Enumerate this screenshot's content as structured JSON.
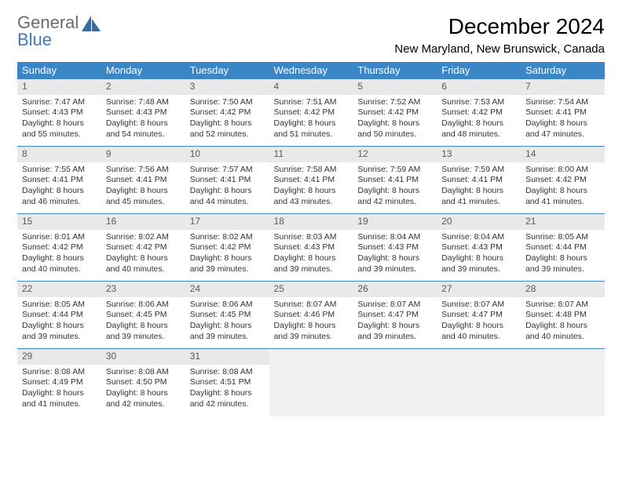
{
  "logo": {
    "word1": "General",
    "word2": "Blue"
  },
  "title": "December 2024",
  "location": "New Maryland, New Brunswick, Canada",
  "header_bg": "#3b86c6",
  "header_fg": "#ffffff",
  "daynum_bg": "#e9e9e9",
  "daynum_fg": "#5a5a5a",
  "border_color": "#3b86c6",
  "empty_bg": "#f0f0f0",
  "body_text_color": "#333333",
  "title_fontsize": 28,
  "location_fontsize": 15,
  "header_fontsize": 13,
  "cell_fontsize": 10.5,
  "weekdays": [
    "Sunday",
    "Monday",
    "Tuesday",
    "Wednesday",
    "Thursday",
    "Friday",
    "Saturday"
  ],
  "weeks": [
    [
      {
        "n": "1",
        "sr": "7:47 AM",
        "ss": "4:43 PM",
        "dh": "8",
        "dm": "55"
      },
      {
        "n": "2",
        "sr": "7:48 AM",
        "ss": "4:43 PM",
        "dh": "8",
        "dm": "54"
      },
      {
        "n": "3",
        "sr": "7:50 AM",
        "ss": "4:42 PM",
        "dh": "8",
        "dm": "52"
      },
      {
        "n": "4",
        "sr": "7:51 AM",
        "ss": "4:42 PM",
        "dh": "8",
        "dm": "51"
      },
      {
        "n": "5",
        "sr": "7:52 AM",
        "ss": "4:42 PM",
        "dh": "8",
        "dm": "50"
      },
      {
        "n": "6",
        "sr": "7:53 AM",
        "ss": "4:42 PM",
        "dh": "8",
        "dm": "48"
      },
      {
        "n": "7",
        "sr": "7:54 AM",
        "ss": "4:41 PM",
        "dh": "8",
        "dm": "47"
      }
    ],
    [
      {
        "n": "8",
        "sr": "7:55 AM",
        "ss": "4:41 PM",
        "dh": "8",
        "dm": "46"
      },
      {
        "n": "9",
        "sr": "7:56 AM",
        "ss": "4:41 PM",
        "dh": "8",
        "dm": "45"
      },
      {
        "n": "10",
        "sr": "7:57 AM",
        "ss": "4:41 PM",
        "dh": "8",
        "dm": "44"
      },
      {
        "n": "11",
        "sr": "7:58 AM",
        "ss": "4:41 PM",
        "dh": "8",
        "dm": "43"
      },
      {
        "n": "12",
        "sr": "7:59 AM",
        "ss": "4:41 PM",
        "dh": "8",
        "dm": "42"
      },
      {
        "n": "13",
        "sr": "7:59 AM",
        "ss": "4:41 PM",
        "dh": "8",
        "dm": "41"
      },
      {
        "n": "14",
        "sr": "8:00 AM",
        "ss": "4:42 PM",
        "dh": "8",
        "dm": "41"
      }
    ],
    [
      {
        "n": "15",
        "sr": "8:01 AM",
        "ss": "4:42 PM",
        "dh": "8",
        "dm": "40"
      },
      {
        "n": "16",
        "sr": "8:02 AM",
        "ss": "4:42 PM",
        "dh": "8",
        "dm": "40"
      },
      {
        "n": "17",
        "sr": "8:02 AM",
        "ss": "4:42 PM",
        "dh": "8",
        "dm": "39"
      },
      {
        "n": "18",
        "sr": "8:03 AM",
        "ss": "4:43 PM",
        "dh": "8",
        "dm": "39"
      },
      {
        "n": "19",
        "sr": "8:04 AM",
        "ss": "4:43 PM",
        "dh": "8",
        "dm": "39"
      },
      {
        "n": "20",
        "sr": "8:04 AM",
        "ss": "4:43 PM",
        "dh": "8",
        "dm": "39"
      },
      {
        "n": "21",
        "sr": "8:05 AM",
        "ss": "4:44 PM",
        "dh": "8",
        "dm": "39"
      }
    ],
    [
      {
        "n": "22",
        "sr": "8:05 AM",
        "ss": "4:44 PM",
        "dh": "8",
        "dm": "39"
      },
      {
        "n": "23",
        "sr": "8:06 AM",
        "ss": "4:45 PM",
        "dh": "8",
        "dm": "39"
      },
      {
        "n": "24",
        "sr": "8:06 AM",
        "ss": "4:45 PM",
        "dh": "8",
        "dm": "39"
      },
      {
        "n": "25",
        "sr": "8:07 AM",
        "ss": "4:46 PM",
        "dh": "8",
        "dm": "39"
      },
      {
        "n": "26",
        "sr": "8:07 AM",
        "ss": "4:47 PM",
        "dh": "8",
        "dm": "39"
      },
      {
        "n": "27",
        "sr": "8:07 AM",
        "ss": "4:47 PM",
        "dh": "8",
        "dm": "40"
      },
      {
        "n": "28",
        "sr": "8:07 AM",
        "ss": "4:48 PM",
        "dh": "8",
        "dm": "40"
      }
    ],
    [
      {
        "n": "29",
        "sr": "8:08 AM",
        "ss": "4:49 PM",
        "dh": "8",
        "dm": "41"
      },
      {
        "n": "30",
        "sr": "8:08 AM",
        "ss": "4:50 PM",
        "dh": "8",
        "dm": "42"
      },
      {
        "n": "31",
        "sr": "8:08 AM",
        "ss": "4:51 PM",
        "dh": "8",
        "dm": "42"
      },
      null,
      null,
      null,
      null
    ]
  ],
  "labels": {
    "sunrise_prefix": "Sunrise: ",
    "sunset_prefix": "Sunset: ",
    "daylight_prefix": "Daylight: ",
    "hours_word": " hours",
    "and_word": "and ",
    "minutes_word": " minutes."
  }
}
